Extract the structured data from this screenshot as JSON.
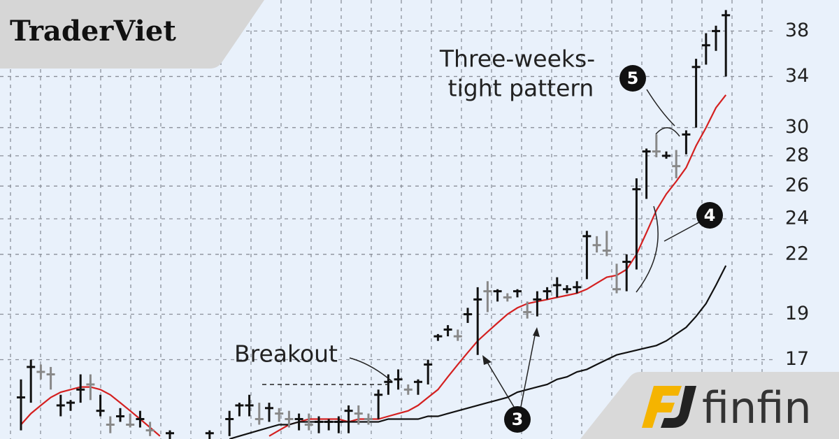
{
  "chart_data": {
    "type": "ohlc",
    "ylim": [
      14,
      41
    ],
    "log_scale": true,
    "grid": true,
    "yticks": [
      17,
      19,
      22,
      24,
      26,
      28,
      30,
      34,
      38
    ],
    "bars": {
      "high": [
        16.2,
        17,
        16.8,
        16.7,
        15.6,
        15.4,
        16.4,
        16.4,
        15.6,
        14.8,
        15.1,
        14.9,
        15.0,
        14.6,
        null,
        14.3,
        null,
        null,
        null,
        14.3,
        null,
        15.0,
        15.3,
        15.6,
        15.3,
        15.3,
        15.1,
        15.0,
        14.9,
        14.9,
        14.8,
        14.7,
        14.8,
        15.2,
        15.2,
        14.9,
        15.8,
        16.4,
        16.6,
        16.0,
        16.2,
        17.0,
        18.1,
        18.5,
        18.3,
        19.3,
        20.3,
        20.6,
        20.2,
        20.0,
        20.2,
        19.6,
        20.1,
        20.3,
        20.8,
        20.4,
        20.6,
        23.3,
        23.0,
        23.3,
        21.5,
        22.0,
        26.5,
        28.5,
        29.5,
        28.3,
        28.4,
        29.8,
        35.5,
        37.8,
        38.5,
        40.0
      ],
      "low": [
        14.3,
        15.3,
        16.2,
        15.8,
        14.8,
        15.0,
        15.3,
        15.4,
        14.8,
        14.2,
        14.6,
        14.4,
        14.4,
        14.1,
        null,
        14.0,
        null,
        null,
        null,
        14.0,
        null,
        14.1,
        14.8,
        14.8,
        14.5,
        14.6,
        14.6,
        14.4,
        14.3,
        14.3,
        14.2,
        14.3,
        14.2,
        14.2,
        14.5,
        14.5,
        14.7,
        15.6,
        15.8,
        15.6,
        15.6,
        16.0,
        17.8,
        18.0,
        17.8,
        18.6,
        17.2,
        19.1,
        19.6,
        19.6,
        19.8,
        18.8,
        18.9,
        19.7,
        19.8,
        20.0,
        20.0,
        20.7,
        22.1,
        21.9,
        20.0,
        20.1,
        21.2,
        25.2,
        27.9,
        27.8,
        26.5,
        28.1,
        30.0,
        35.0,
        36.2,
        34.0
      ],
      "close": [
        15.5,
        16.7,
        16.5,
        16.4,
        15.2,
        15.3,
        15.8,
        16.0,
        15.0,
        14.5,
        14.8,
        14.5,
        14.7,
        14.3,
        null,
        14.2,
        null,
        null,
        null,
        14.2,
        null,
        14.7,
        15.2,
        15.2,
        14.7,
        15.1,
        14.9,
        14.7,
        14.7,
        14.5,
        14.6,
        14.6,
        14.6,
        15.0,
        14.9,
        14.7,
        15.6,
        16.1,
        16.2,
        15.8,
        16.1,
        16.8,
        18.0,
        18.3,
        18.0,
        19.0,
        19.7,
        20.1,
        20.1,
        19.8,
        20.1,
        19.1,
        19.7,
        20.1,
        20.4,
        20.2,
        20.3,
        23.0,
        22.5,
        22.2,
        20.2,
        21.6,
        25.8,
        28.3,
        28.3,
        28.0,
        27.3,
        29.5,
        34.8,
        36.7,
        38.0,
        39.5
      ],
      "colors": [
        "#111",
        "#111",
        "#888",
        "#888",
        "#111",
        "#111",
        "#111",
        "#888",
        "#111",
        "#888",
        "#111",
        "#888",
        "#111",
        "#888",
        null,
        "#111",
        null,
        null,
        null,
        "#111",
        null,
        "#111",
        "#111",
        "#111",
        "#888",
        "#111",
        "#888",
        "#888",
        "#111",
        "#888",
        "#111",
        "#111",
        "#111",
        "#111",
        "#888",
        "#888",
        "#111",
        "#111",
        "#111",
        "#888",
        "#111",
        "#111",
        "#111",
        "#111",
        "#888",
        "#111",
        "#111",
        "#888",
        "#111",
        "#888",
        "#111",
        "#888",
        "#111",
        "#111",
        "#111",
        "#111",
        "#111",
        "#111",
        "#888",
        "#888",
        "#888",
        "#111",
        "#111",
        "#111",
        "#888",
        "#111",
        "#888",
        "#111",
        "#111",
        "#111",
        "#111",
        "#111"
      ]
    },
    "lines": [
      {
        "color": "#d42020",
        "values": [
          14.5,
          14.9,
          15.2,
          15.5,
          15.7,
          15.8,
          15.9,
          15.9,
          15.8,
          15.6,
          15.3,
          15.0,
          14.7,
          14.4,
          14.1,
          null,
          null,
          null,
          null,
          null,
          null,
          null,
          null,
          null,
          null,
          14.1,
          14.3,
          14.5,
          14.6,
          14.7,
          14.7,
          14.7,
          14.7,
          14.6,
          14.7,
          14.7,
          14.7,
          14.8,
          14.9,
          15.0,
          15.2,
          15.5,
          15.8,
          16.3,
          16.8,
          17.3,
          17.8,
          18.2,
          18.6,
          19.0,
          19.3,
          19.5,
          19.6,
          19.7,
          19.8,
          19.9,
          20.0,
          20.2,
          20.5,
          20.8,
          20.9,
          21.2,
          22.0,
          23.2,
          24.5,
          25.5,
          26.3,
          27.2,
          28.7,
          30.0,
          31.5,
          32.5
        ]
      },
      {
        "color": "#111111",
        "values": [
          null,
          null,
          null,
          null,
          null,
          null,
          null,
          null,
          null,
          null,
          null,
          null,
          null,
          null,
          null,
          null,
          null,
          null,
          null,
          null,
          null,
          14.0,
          14.1,
          14.2,
          14.3,
          14.4,
          14.5,
          14.5,
          14.6,
          14.6,
          14.6,
          14.6,
          14.6,
          14.6,
          14.6,
          14.6,
          14.6,
          14.7,
          14.7,
          14.7,
          14.7,
          14.8,
          14.8,
          14.9,
          15.0,
          15.1,
          15.2,
          15.3,
          15.4,
          15.5,
          15.7,
          15.8,
          15.9,
          16.0,
          16.2,
          16.3,
          16.5,
          16.6,
          16.8,
          17.0,
          17.2,
          17.3,
          17.4,
          17.5,
          17.6,
          17.8,
          18.1,
          18.4,
          18.9,
          19.5,
          20.4,
          21.4
        ]
      }
    ],
    "annotations": {
      "pattern_line1": "Three-weeks-",
      "pattern_line2": "tight pattern",
      "breakout": "Breakout",
      "marker_3": "3",
      "marker_4": "4",
      "marker_5": "5"
    }
  },
  "logos": {
    "left": "TraderViet",
    "right": "finfin"
  }
}
